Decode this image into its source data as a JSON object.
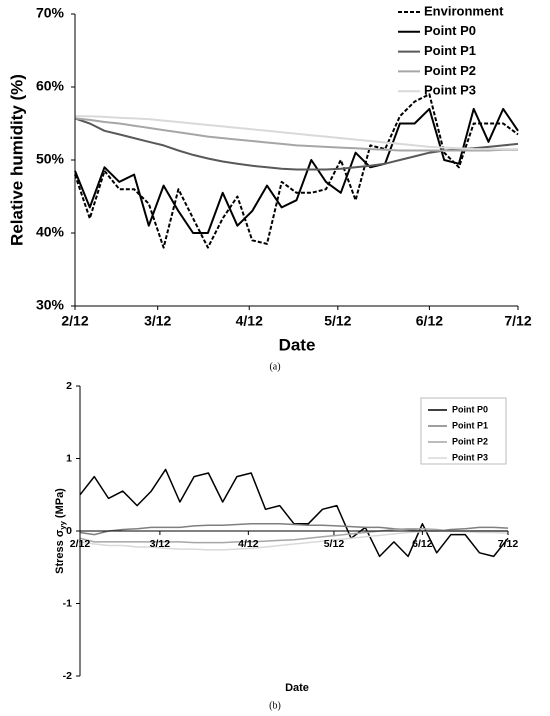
{
  "chart_data": [
    {
      "type": "line",
      "caption": "(a)",
      "xlabel": "Date",
      "ylabel": "Relative humidity (%)",
      "x": [
        "2/12",
        "2/17",
        "2/22",
        "2/27",
        "3/4",
        "3/9",
        "3/14",
        "3/19",
        "3/24",
        "3/29",
        "4/3",
        "4/8",
        "4/13",
        "4/18",
        "4/23",
        "4/28",
        "5/3",
        "5/8",
        "5/13",
        "5/18",
        "5/23",
        "5/28",
        "6/2",
        "6/7",
        "6/12",
        "6/17",
        "6/22",
        "6/27",
        "7/2",
        "7/7",
        "7/12"
      ],
      "xlim": [
        "2/12",
        "7/12"
      ],
      "xticks": [
        "2/12",
        "3/12",
        "4/12",
        "5/12",
        "6/12",
        "7/12"
      ],
      "ylim": [
        30,
        70
      ],
      "yticks": [
        {
          "value": 30,
          "label": "30%"
        },
        {
          "value": 40,
          "label": "40%"
        },
        {
          "value": 50,
          "label": "50%"
        },
        {
          "value": 60,
          "label": "60%"
        },
        {
          "value": 70,
          "label": "70%"
        }
      ],
      "grid": false,
      "legend": "top-right",
      "series": [
        {
          "name": "Environment",
          "color": "#000000",
          "dashed": true,
          "values": [
            48,
            42,
            48.5,
            46,
            46,
            44,
            38,
            46,
            42,
            38,
            42,
            45,
            39,
            38.5,
            47,
            45.5,
            45.5,
            46,
            50,
            44.5,
            52,
            51.5,
            56,
            58,
            59,
            51,
            49,
            55,
            55,
            55,
            53.5
          ]
        },
        {
          "name": "Point P0",
          "color": "#000000",
          "values": [
            48.5,
            43.5,
            49,
            47,
            48,
            41,
            46.5,
            43,
            40,
            40,
            45.5,
            41,
            43,
            46.5,
            43.5,
            44.5,
            50,
            47,
            45.5,
            51,
            49,
            49.5,
            55,
            55,
            57,
            50,
            49.5,
            57,
            52.5,
            57,
            54
          ]
        },
        {
          "name": "Point P1",
          "color": "#595959",
          "values": [
            55.7,
            55,
            54,
            53.5,
            53,
            52.5,
            52,
            51.3,
            50.7,
            50.2,
            49.8,
            49.5,
            49.2,
            49,
            48.8,
            48.7,
            48.7,
            48.7,
            48.8,
            49,
            49.2,
            49.5,
            50,
            50.5,
            51,
            51.3,
            51.5,
            51.6,
            51.8,
            52,
            52.2
          ]
        },
        {
          "name": "Point P2",
          "color": "#a6a6a6",
          "values": [
            55.7,
            55.5,
            55.2,
            55,
            54.7,
            54.4,
            54.1,
            53.8,
            53.5,
            53.2,
            53,
            52.8,
            52.6,
            52.4,
            52.2,
            52,
            51.9,
            51.8,
            51.7,
            51.6,
            51.5,
            51.4,
            51.3,
            51.3,
            51.3,
            51.3,
            51.3,
            51.3,
            51.3,
            51.4,
            51.4
          ]
        },
        {
          "name": "Point P3",
          "color": "#d9d9d9",
          "values": [
            56,
            56,
            55.9,
            55.8,
            55.7,
            55.6,
            55.4,
            55.2,
            55,
            54.8,
            54.6,
            54.4,
            54.2,
            54,
            53.8,
            53.6,
            53.4,
            53.2,
            53,
            52.8,
            52.6,
            52.4,
            52.2,
            52,
            51.8,
            51.7,
            51.6,
            51.5,
            51.5,
            51.5,
            51.5
          ]
        }
      ]
    },
    {
      "type": "line",
      "caption": "(b)",
      "xlabel": "Date",
      "ylabel": [
        "Stress σ",
        "yy",
        "(MPa)"
      ],
      "x": [
        "2/12",
        "2/17",
        "2/22",
        "2/27",
        "3/4",
        "3/9",
        "3/14",
        "3/19",
        "3/24",
        "3/29",
        "4/3",
        "4/8",
        "4/13",
        "4/18",
        "4/23",
        "4/28",
        "5/3",
        "5/8",
        "5/13",
        "5/18",
        "5/23",
        "5/28",
        "6/2",
        "6/7",
        "6/12",
        "6/17",
        "6/22",
        "6/27",
        "7/2",
        "7/7",
        "7/12"
      ],
      "xlim": [
        "2/12",
        "7/12"
      ],
      "xticks": [
        "2/12",
        "3/12",
        "4/12",
        "5/12",
        "6/12",
        "7/12"
      ],
      "ylim": [
        -2,
        2
      ],
      "yticks": [
        -2,
        -1,
        0,
        1,
        2
      ],
      "grid": false,
      "legend": "top-right",
      "series": [
        {
          "name": "Point P0",
          "color": "#000000",
          "values": [
            0.5,
            0.75,
            0.45,
            0.55,
            0.35,
            0.55,
            0.85,
            0.4,
            0.75,
            0.8,
            0.4,
            0.75,
            0.8,
            0.3,
            0.35,
            0.1,
            0.1,
            0.3,
            0.35,
            -0.1,
            0.05,
            -0.35,
            -0.15,
            -0.35,
            0.1,
            -0.3,
            -0.05,
            -0.05,
            -0.3,
            -0.35,
            -0.1
          ]
        },
        {
          "name": "Point P1",
          "color": "#7f7f7f",
          "values": [
            -0.02,
            -0.05,
            0,
            0.02,
            0.03,
            0.05,
            0.05,
            0.05,
            0.07,
            0.08,
            0.08,
            0.09,
            0.1,
            0.1,
            0.1,
            0.09,
            0.08,
            0.08,
            0.07,
            0.06,
            0.05,
            0.05,
            0.03,
            0.02,
            0,
            0,
            0.02,
            0.03,
            0.05,
            0.05,
            0.04
          ]
        },
        {
          "name": "Point P2",
          "color": "#a6a6a6",
          "values": [
            -0.1,
            -0.15,
            -0.15,
            -0.15,
            -0.15,
            -0.15,
            -0.15,
            -0.15,
            -0.16,
            -0.16,
            -0.16,
            -0.15,
            -0.15,
            -0.14,
            -0.13,
            -0.12,
            -0.1,
            -0.08,
            -0.06,
            -0.04,
            -0.02,
            0,
            0.02,
            0.03,
            0.03,
            0.02,
            0,
            0,
            0,
            0,
            0
          ]
        },
        {
          "name": "Point P3",
          "color": "#d9d9d9",
          "values": [
            -0.15,
            -0.18,
            -0.2,
            -0.2,
            -0.22,
            -0.22,
            -0.24,
            -0.25,
            -0.25,
            -0.26,
            -0.26,
            -0.25,
            -0.24,
            -0.22,
            -0.2,
            -0.18,
            -0.16,
            -0.14,
            -0.12,
            -0.1,
            -0.08,
            -0.06,
            -0.04,
            -0.02,
            -0.01,
            0,
            0,
            -0.01,
            -0.02,
            -0.02,
            -0.03
          ]
        }
      ]
    }
  ]
}
